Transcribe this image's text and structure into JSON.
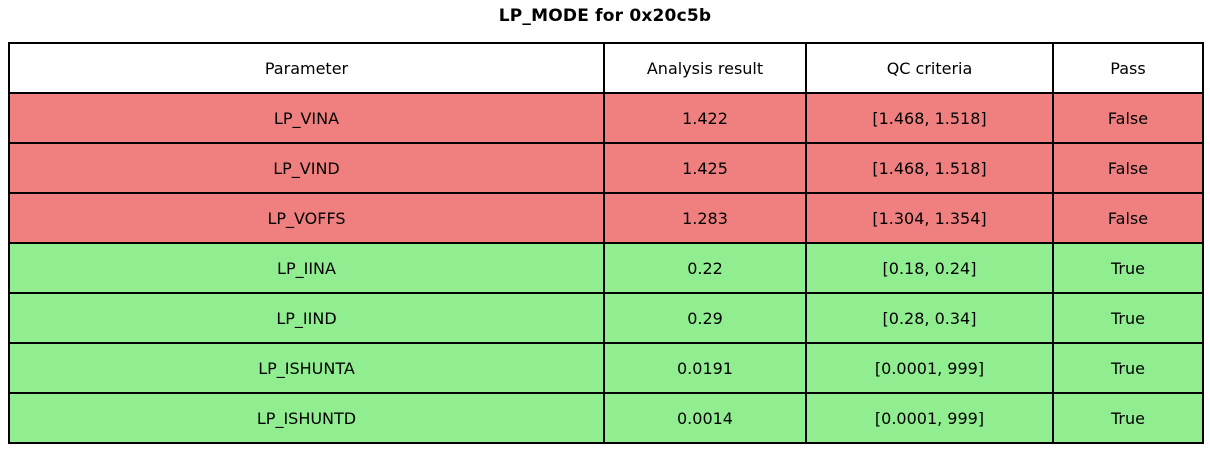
{
  "title": "LP_MODE for 0x20c5b",
  "colors": {
    "fail_row": "#f08080",
    "pass_row": "#90ee90",
    "header_bg": "#ffffff",
    "border": "#000000",
    "text": "#000000"
  },
  "table": {
    "headers": {
      "parameter": "Parameter",
      "analysis_result": "Analysis result",
      "qc_criteria": "QC criteria",
      "pass": "Pass"
    },
    "rows": [
      {
        "parameter": "LP_VINA",
        "analysis_result": "1.422",
        "qc_criteria": "[1.468, 1.518]",
        "pass": "False",
        "row_color": "#f08080"
      },
      {
        "parameter": "LP_VIND",
        "analysis_result": "1.425",
        "qc_criteria": "[1.468, 1.518]",
        "pass": "False",
        "row_color": "#f08080"
      },
      {
        "parameter": "LP_VOFFS",
        "analysis_result": "1.283",
        "qc_criteria": "[1.304, 1.354]",
        "pass": "False",
        "row_color": "#f08080"
      },
      {
        "parameter": "LP_IINA",
        "analysis_result": "0.22",
        "qc_criteria": "[0.18, 0.24]",
        "pass": "True",
        "row_color": "#90ee90"
      },
      {
        "parameter": "LP_IIND",
        "analysis_result": "0.29",
        "qc_criteria": "[0.28, 0.34]",
        "pass": "True",
        "row_color": "#90ee90"
      },
      {
        "parameter": "LP_ISHUNTA",
        "analysis_result": "0.0191",
        "qc_criteria": "[0.0001, 999]",
        "pass": "True",
        "row_color": "#90ee90"
      },
      {
        "parameter": "LP_ISHUNTD",
        "analysis_result": "0.0014",
        "qc_criteria": "[0.0001, 999]",
        "pass": "True",
        "row_color": "#90ee90"
      }
    ]
  },
  "chart_data": {
    "type": "table",
    "title": "LP_MODE for 0x20c5b",
    "columns": [
      "Parameter",
      "Analysis result",
      "QC criteria",
      "Pass"
    ],
    "rows": [
      [
        "LP_VINA",
        1.422,
        "[1.468, 1.518]",
        "False"
      ],
      [
        "LP_VIND",
        1.425,
        "[1.468, 1.518]",
        "False"
      ],
      [
        "LP_VOFFS",
        1.283,
        "[1.304, 1.354]",
        "False"
      ],
      [
        "LP_IINA",
        0.22,
        "[0.18, 0.24]",
        "True"
      ],
      [
        "LP_IIND",
        0.29,
        "[0.28, 0.34]",
        "True"
      ],
      [
        "LP_ISHUNTA",
        0.0191,
        "[0.0001, 999]",
        "True"
      ],
      [
        "LP_ISHUNTD",
        0.0014,
        "[0.0001, 999]",
        "True"
      ]
    ],
    "row_status": [
      "fail",
      "fail",
      "fail",
      "pass",
      "pass",
      "pass",
      "pass"
    ],
    "layout_hints": {
      "fail_color": "#f08080",
      "pass_color": "#90ee90",
      "grid": true,
      "title_bold": true
    }
  }
}
